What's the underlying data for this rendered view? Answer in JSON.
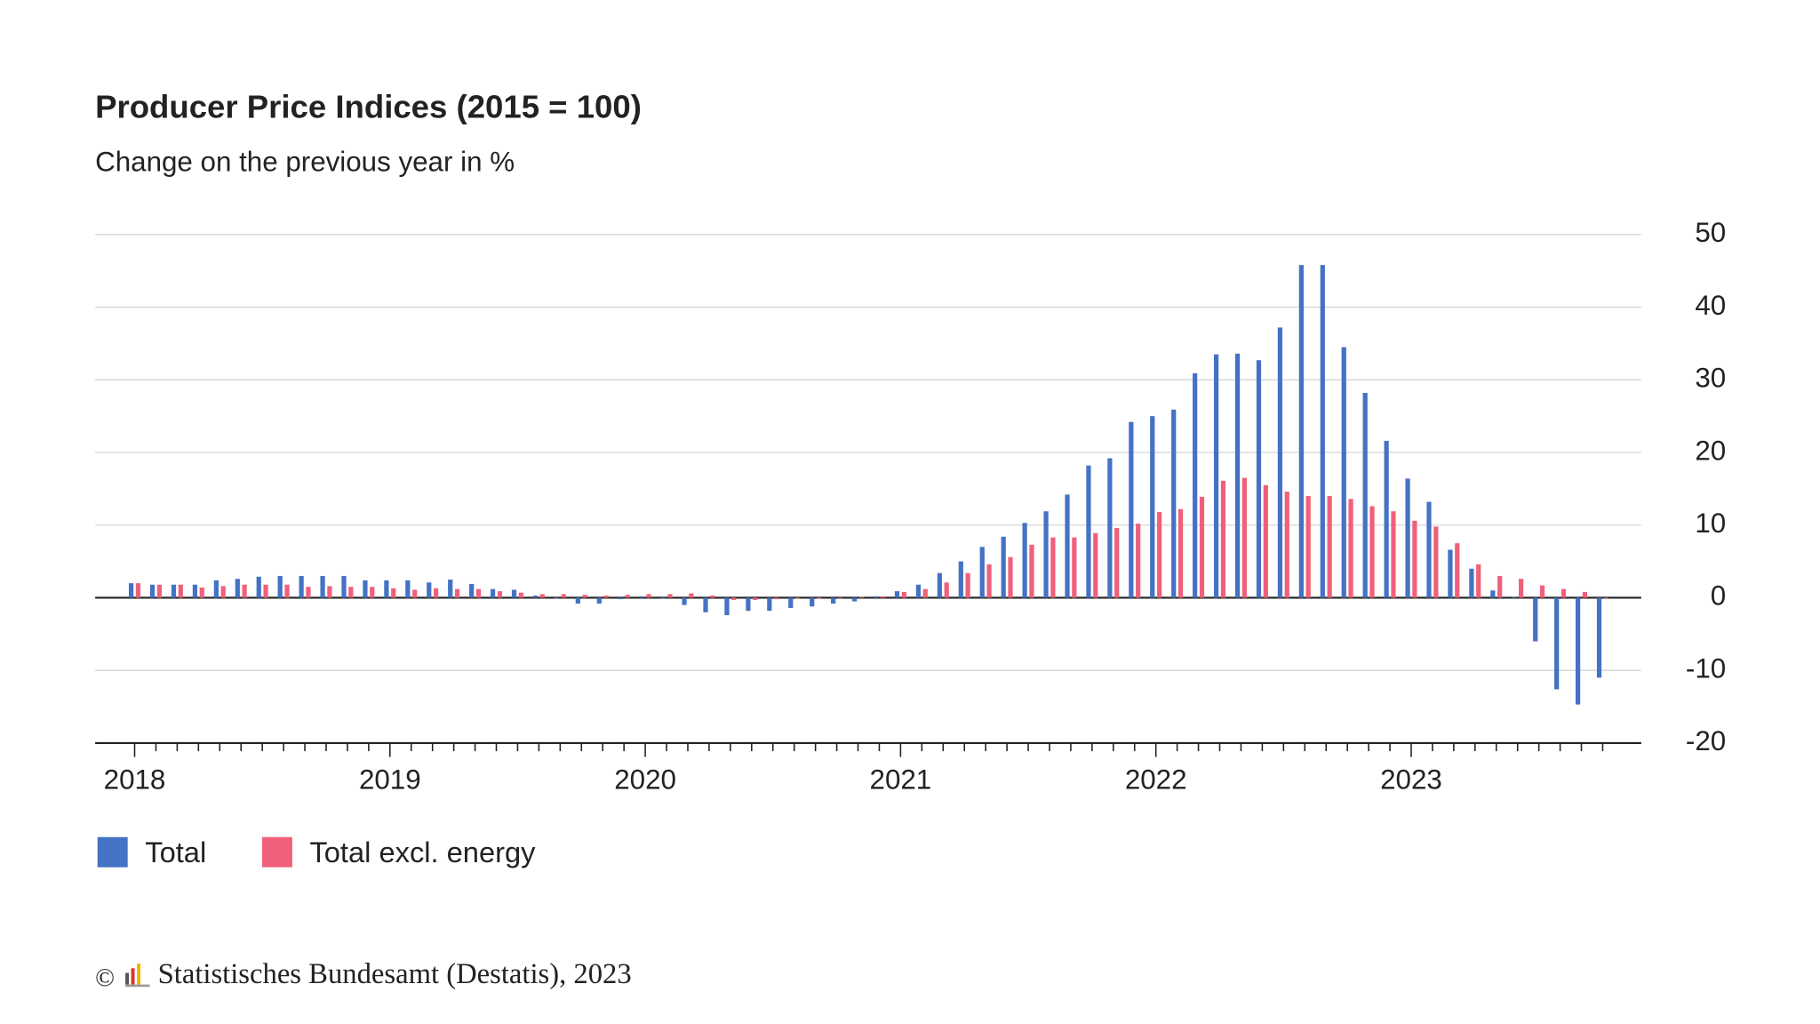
{
  "chart_data": {
    "type": "bar",
    "title": "Producer Price Indices (2015 = 100)",
    "subtitle": "Change on the previous year in %",
    "categories": [
      "2018",
      null,
      null,
      null,
      null,
      null,
      null,
      null,
      null,
      null,
      null,
      null,
      "2019",
      null,
      null,
      null,
      null,
      null,
      null,
      null,
      null,
      null,
      null,
      null,
      "2020",
      null,
      null,
      null,
      null,
      null,
      null,
      null,
      null,
      null,
      null,
      null,
      "2021",
      null,
      null,
      null,
      null,
      null,
      null,
      null,
      null,
      null,
      null,
      null,
      "2022",
      null,
      null,
      null,
      null,
      null,
      null,
      null,
      null,
      null,
      null,
      null,
      "2023",
      null,
      null,
      null,
      null,
      null,
      null,
      null,
      null,
      null
    ],
    "series": [
      {
        "name": "Total",
        "color": "#4472c4",
        "values": [
          2.0,
          1.8,
          1.8,
          1.8,
          2.4,
          2.6,
          2.9,
          3.0,
          3.0,
          3.0,
          3.0,
          2.4,
          2.4,
          2.4,
          2.1,
          2.5,
          1.9,
          1.2,
          1.1,
          0.3,
          -0.1,
          -0.8,
          -0.8,
          -0.2,
          0.2,
          -0.1,
          -1.0,
          -2.0,
          -2.4,
          -1.8,
          -1.8,
          -1.4,
          -1.2,
          -0.8,
          -0.5,
          0.2,
          0.9,
          1.8,
          3.4,
          5.0,
          7.0,
          8.4,
          10.3,
          11.9,
          14.2,
          18.2,
          19.2,
          24.2,
          25.0,
          25.9,
          30.9,
          33.5,
          33.6,
          32.7,
          37.2,
          45.8,
          45.8,
          34.5,
          28.2,
          21.6,
          16.4,
          13.2,
          6.6,
          4.0,
          1.0,
          0.1,
          -6.0,
          -12.6,
          -14.7,
          -11.0
        ]
      },
      {
        "name": "Total excl. energy",
        "color": "#f0607a",
        "values": [
          2.0,
          1.8,
          1.8,
          1.4,
          1.6,
          1.8,
          1.8,
          1.8,
          1.5,
          1.6,
          1.5,
          1.5,
          1.3,
          1.1,
          1.3,
          1.2,
          1.2,
          0.9,
          0.7,
          0.5,
          0.5,
          0.4,
          0.3,
          0.4,
          0.5,
          0.5,
          0.6,
          0.3,
          -0.3,
          -0.3,
          -0.2,
          -0.1,
          -0.1,
          0.0,
          0.1,
          0.2,
          0.8,
          1.2,
          2.1,
          3.4,
          4.6,
          5.6,
          7.3,
          8.3,
          8.3,
          8.9,
          9.6,
          10.2,
          11.8,
          12.2,
          13.9,
          16.1,
          16.5,
          15.5,
          14.6,
          14.0,
          14.0,
          13.6,
          12.6,
          11.9,
          10.6,
          9.8,
          7.5,
          4.6,
          3.0,
          2.6,
          1.7,
          1.2,
          0.8,
          0.0
        ]
      }
    ],
    "ylim": [
      -20,
      50
    ],
    "yticks": [
      -20,
      -10,
      0,
      10,
      20,
      30,
      40,
      50
    ],
    "grid": true,
    "legend": "bottom",
    "copyright": "©",
    "source": "Statistisches Bundesamt (Destatis), 2023"
  }
}
